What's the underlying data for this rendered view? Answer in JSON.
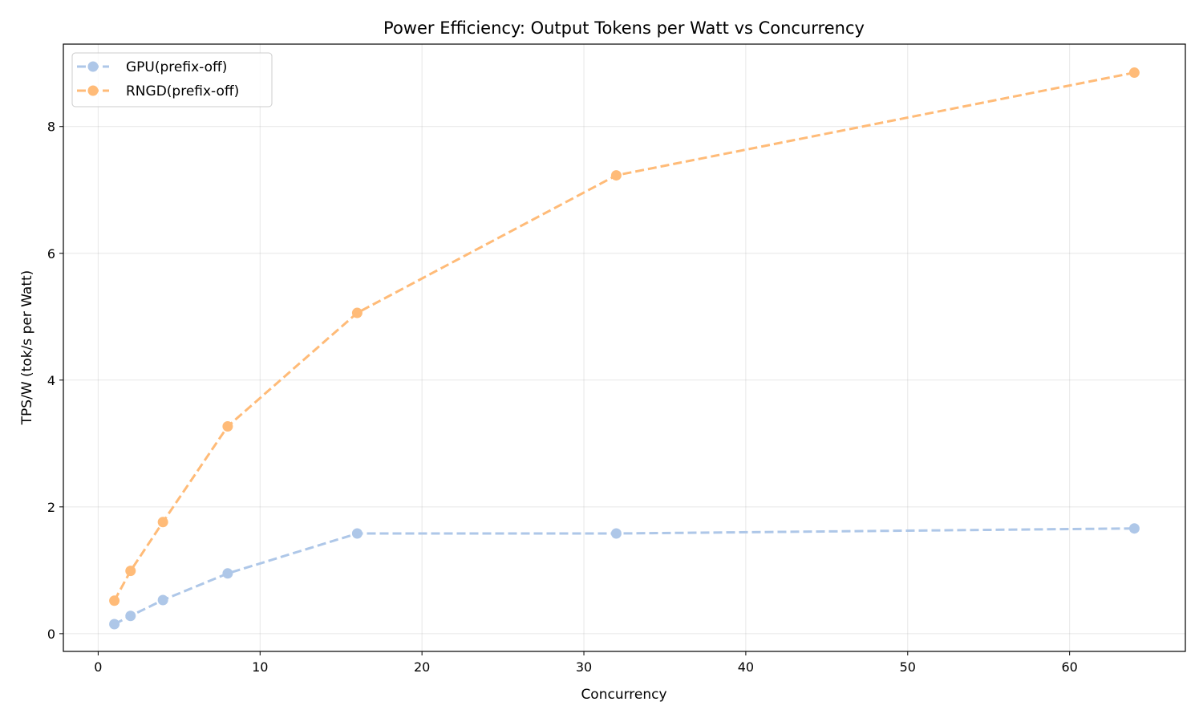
{
  "chart_data": {
    "type": "line",
    "title": "Power Efficiency: Output Tokens per Watt vs Concurrency",
    "xlabel": "Concurrency",
    "ylabel": "TPS/W (tok/s per Watt)",
    "xlim": [
      -2.15,
      67.15
    ],
    "ylim": [
      -0.28,
      9.3
    ],
    "xticks": [
      0,
      10,
      20,
      30,
      40,
      50,
      60
    ],
    "yticks": [
      0,
      2,
      4,
      6,
      8
    ],
    "grid": true,
    "legend_position": "top-left",
    "x": [
      1,
      2,
      4,
      8,
      16,
      32,
      64
    ],
    "series": [
      {
        "name": "GPU(prefix-off)",
        "color": "#aec7e8",
        "values": [
          0.15,
          0.28,
          0.53,
          0.95,
          1.58,
          1.58,
          1.66
        ]
      },
      {
        "name": "RNGD(prefix-off)",
        "color": "#ffbb78",
        "values": [
          0.52,
          0.99,
          1.76,
          3.27,
          5.06,
          7.23,
          8.85
        ]
      }
    ]
  }
}
